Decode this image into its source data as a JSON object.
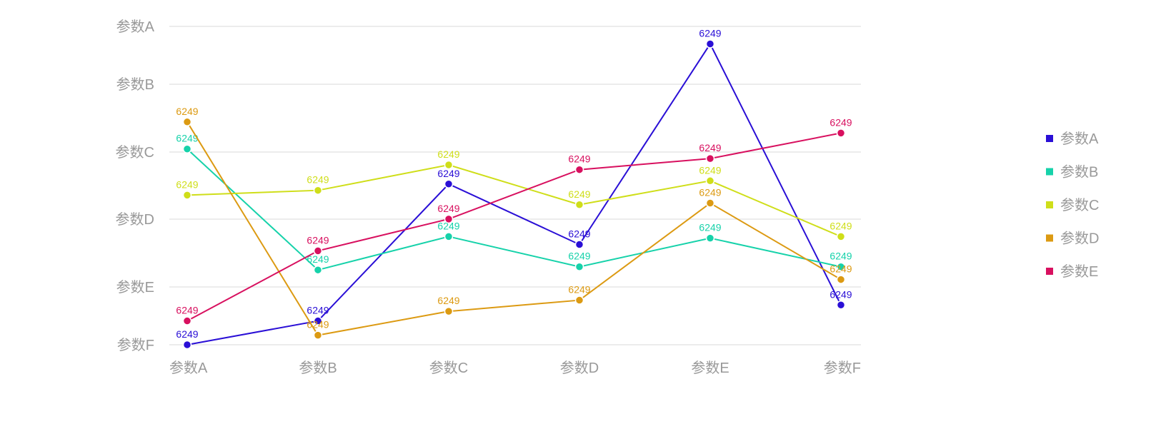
{
  "chart_data": {
    "type": "line",
    "categories": [
      "参数A",
      "参数B",
      "参数C",
      "参数D",
      "参数E",
      "参数F"
    ],
    "y_axis_labels": [
      "参数A",
      "参数B",
      "参数C",
      "参数D",
      "参数E",
      "参数F"
    ],
    "y_axis_order": "top-to-bottom",
    "ylim": [
      0,
      100
    ],
    "grid": true,
    "legend_position": "right",
    "series": [
      {
        "name": "参数A",
        "color": "#2a0fd6",
        "values": [
          0,
          7.5,
          50.5,
          31.5,
          94.5,
          12.5
        ],
        "labels": [
          "6249",
          "6249",
          "6249",
          "6249",
          "6249",
          "6249"
        ]
      },
      {
        "name": "参数B",
        "color": "#16d2aa",
        "values": [
          61.5,
          23.5,
          34,
          24.5,
          33.5,
          24.5
        ],
        "labels": [
          "6249",
          "6249",
          "6249",
          "6249",
          "6249",
          "6249"
        ]
      },
      {
        "name": "参数C",
        "color": "#cfde19",
        "values": [
          47,
          48.5,
          56.5,
          44,
          51.5,
          34
        ],
        "labels": [
          "6249",
          "6249",
          "6249",
          "6249",
          "6249",
          "6249"
        ]
      },
      {
        "name": "参数D",
        "color": "#dc9a12",
        "values": [
          70,
          3,
          10.5,
          14,
          44.5,
          20.5
        ],
        "labels": [
          "6249",
          "6249",
          "6249",
          "6249",
          "6249",
          "6249"
        ]
      },
      {
        "name": "参数E",
        "color": "#d8105f",
        "values": [
          7.5,
          29.5,
          39.5,
          55,
          58.5,
          66.5
        ],
        "labels": [
          "6249",
          "6249",
          "6249",
          "6249",
          "6249",
          "6249"
        ]
      }
    ]
  }
}
